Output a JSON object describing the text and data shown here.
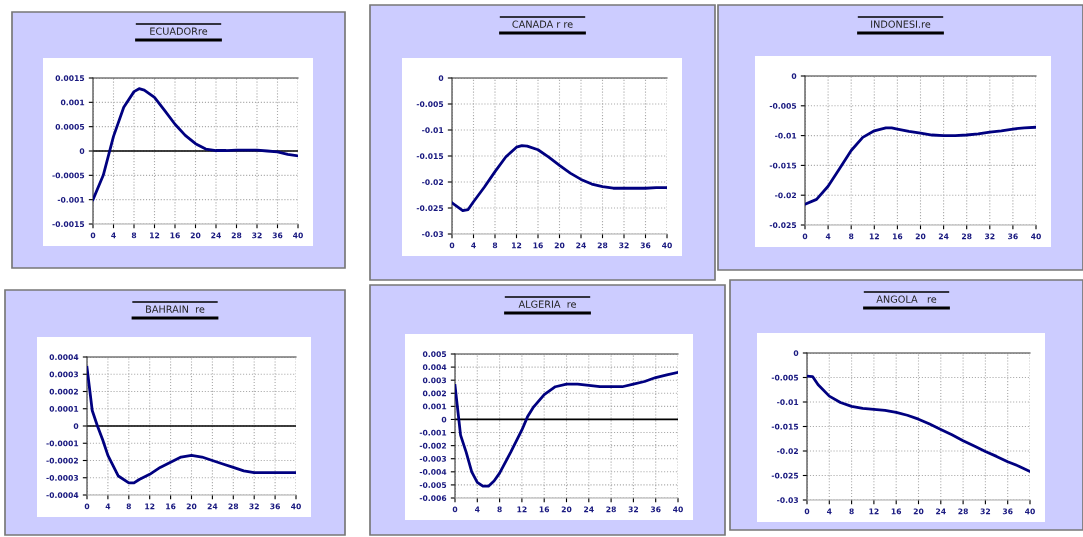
{
  "chart_data": [
    {
      "type": "line",
      "title": "ECUADORre",
      "x": [
        0,
        2,
        4,
        6,
        8,
        9,
        10,
        12,
        14,
        16,
        18,
        20,
        22,
        24,
        26,
        28,
        30,
        32,
        34,
        36,
        38,
        40
      ],
      "series": [
        {
          "color": "#000080",
          "values": [
            -0.001,
            -0.0005,
            0.0003,
            0.0009,
            0.00122,
            0.00128,
            0.00125,
            0.0011,
            0.00083,
            0.00055,
            0.00032,
            0.00015,
            4e-05,
            1e-05,
            1e-05,
            2e-05,
            2e-05,
            2e-05,
            0.0,
            -2e-05,
            -7e-05,
            -0.0001
          ]
        }
      ],
      "xlim": [
        0,
        40
      ],
      "xticks": [
        0,
        4,
        8,
        12,
        16,
        20,
        24,
        28,
        32,
        36,
        40
      ],
      "ylim": [
        -0.0015,
        0.0015
      ],
      "yticks": [
        -0.0015,
        -0.001,
        -0.0005,
        0,
        0.0005,
        0.001,
        0.0015
      ],
      "grid": true,
      "ref_lines": [
        {
          "axis": "y",
          "value": 0,
          "color": "#000000"
        }
      ]
    },
    {
      "type": "line",
      "title": "CANADA r re",
      "x": [
        0,
        2,
        3,
        4,
        6,
        8,
        10,
        12,
        13,
        14,
        16,
        18,
        20,
        22,
        24,
        26,
        28,
        30,
        32,
        34,
        36,
        38,
        40
      ],
      "series": [
        {
          "color": "#000080",
          "values": [
            -0.024,
            -0.0255,
            -0.0253,
            -0.0238,
            -0.021,
            -0.018,
            -0.0152,
            -0.0133,
            -0.013,
            -0.0131,
            -0.0138,
            -0.0152,
            -0.0168,
            -0.0183,
            -0.0195,
            -0.0204,
            -0.0209,
            -0.0212,
            -0.0212,
            -0.0212,
            -0.0212,
            -0.0211,
            -0.0211
          ]
        }
      ],
      "xlim": [
        0,
        40
      ],
      "xticks": [
        0,
        4,
        8,
        12,
        16,
        20,
        24,
        28,
        32,
        36,
        40
      ],
      "ylim": [
        -0.03,
        0
      ],
      "yticks": [
        -0.03,
        -0.025,
        -0.02,
        -0.015,
        -0.01,
        -0.005,
        0
      ],
      "grid": true
    },
    {
      "type": "line",
      "title": "INDONESI.re",
      "x": [
        0,
        2,
        4,
        6,
        8,
        10,
        12,
        14,
        15,
        16,
        18,
        20,
        22,
        24,
        26,
        28,
        30,
        32,
        34,
        36,
        38,
        40
      ],
      "series": [
        {
          "color": "#000080",
          "values": [
            -0.0215,
            -0.0207,
            -0.0185,
            -0.0155,
            -0.0125,
            -0.0103,
            -0.0092,
            -0.0087,
            -0.0087,
            -0.0089,
            -0.0093,
            -0.0096,
            -0.0099,
            -0.01,
            -0.01,
            -0.0099,
            -0.0097,
            -0.0094,
            -0.0092,
            -0.0089,
            -0.0087,
            -0.0086
          ]
        }
      ],
      "xlim": [
        0,
        40
      ],
      "xticks": [
        0,
        4,
        8,
        12,
        16,
        20,
        24,
        28,
        32,
        36,
        40
      ],
      "ylim": [
        -0.025,
        0
      ],
      "yticks": [
        -0.025,
        -0.02,
        -0.015,
        -0.01,
        -0.005,
        0
      ],
      "grid": true
    },
    {
      "type": "line",
      "title": "BAHRAIN  re",
      "x": [
        0,
        1,
        2,
        3,
        4,
        6,
        8,
        9,
        10,
        12,
        14,
        16,
        18,
        20,
        22,
        24,
        26,
        28,
        30,
        32,
        34,
        36,
        38,
        40
      ],
      "series": [
        {
          "color": "#000080",
          "values": [
            0.00034,
            9e-05,
            0.0,
            -8e-05,
            -0.00017,
            -0.00029,
            -0.00033,
            -0.00033,
            -0.00031,
            -0.00028,
            -0.00024,
            -0.00021,
            -0.00018,
            -0.00017,
            -0.00018,
            -0.0002,
            -0.00022,
            -0.00024,
            -0.00026,
            -0.00027,
            -0.00027,
            -0.00027,
            -0.00027,
            -0.00027
          ]
        }
      ],
      "xlim": [
        0,
        40
      ],
      "xticks": [
        0,
        4,
        8,
        12,
        16,
        20,
        24,
        28,
        32,
        36,
        40
      ],
      "ylim": [
        -0.0004,
        0.0004
      ],
      "yticks": [
        -0.0004,
        -0.0003,
        -0.0002,
        -0.0001,
        0,
        0.0001,
        0.0002,
        0.0003,
        0.0004
      ],
      "grid": true,
      "ref_lines": [
        {
          "axis": "y",
          "value": 0,
          "color": "#000000"
        }
      ]
    },
    {
      "type": "line",
      "title": "ALGERIA  re",
      "x": [
        0,
        1,
        2,
        3,
        4,
        5,
        6,
        7,
        8,
        10,
        12,
        13,
        14,
        16,
        18,
        20,
        22,
        24,
        26,
        28,
        30,
        32,
        34,
        36,
        38,
        40
      ],
      "series": [
        {
          "color": "#000080",
          "values": [
            0.0026,
            -0.0012,
            -0.0025,
            -0.004,
            -0.0048,
            -0.0051,
            -0.0051,
            -0.0047,
            -0.0041,
            -0.0025,
            -0.0008,
            0.0002,
            0.0009,
            0.0019,
            0.0025,
            0.0027,
            0.0027,
            0.0026,
            0.0025,
            0.0025,
            0.0025,
            0.0027,
            0.0029,
            0.0032,
            0.0034,
            0.0036
          ]
        }
      ],
      "xlim": [
        0,
        40
      ],
      "xticks": [
        0,
        4,
        8,
        12,
        16,
        20,
        24,
        28,
        32,
        36,
        40
      ],
      "ylim": [
        -0.006,
        0.005
      ],
      "yticks": [
        -0.006,
        -0.005,
        -0.004,
        -0.003,
        -0.002,
        -0.001,
        0,
        0.001,
        0.002,
        0.003,
        0.004,
        0.005
      ],
      "grid": true,
      "ref_lines": [
        {
          "axis": "y",
          "value": 0,
          "color": "#000000"
        }
      ]
    },
    {
      "type": "line",
      "title": "ANGOLA   re",
      "x": [
        0,
        1,
        2,
        4,
        6,
        8,
        10,
        12,
        14,
        16,
        18,
        20,
        22,
        24,
        26,
        28,
        30,
        32,
        34,
        36,
        38,
        40
      ],
      "series": [
        {
          "color": "#000080",
          "values": [
            -0.0047,
            -0.0048,
            -0.0065,
            -0.0088,
            -0.0101,
            -0.0109,
            -0.0113,
            -0.0115,
            -0.0117,
            -0.0121,
            -0.0127,
            -0.0135,
            -0.0145,
            -0.0156,
            -0.0167,
            -0.0179,
            -0.019,
            -0.0201,
            -0.0211,
            -0.0222,
            -0.0231,
            -0.0242
          ]
        }
      ],
      "xlim": [
        0,
        40
      ],
      "xticks": [
        0,
        4,
        8,
        12,
        16,
        20,
        24,
        28,
        32,
        36,
        40
      ],
      "ylim": [
        -0.03,
        0
      ],
      "yticks": [
        -0.03,
        -0.025,
        -0.02,
        -0.015,
        -0.01,
        -0.005,
        0
      ],
      "grid": true
    }
  ]
}
